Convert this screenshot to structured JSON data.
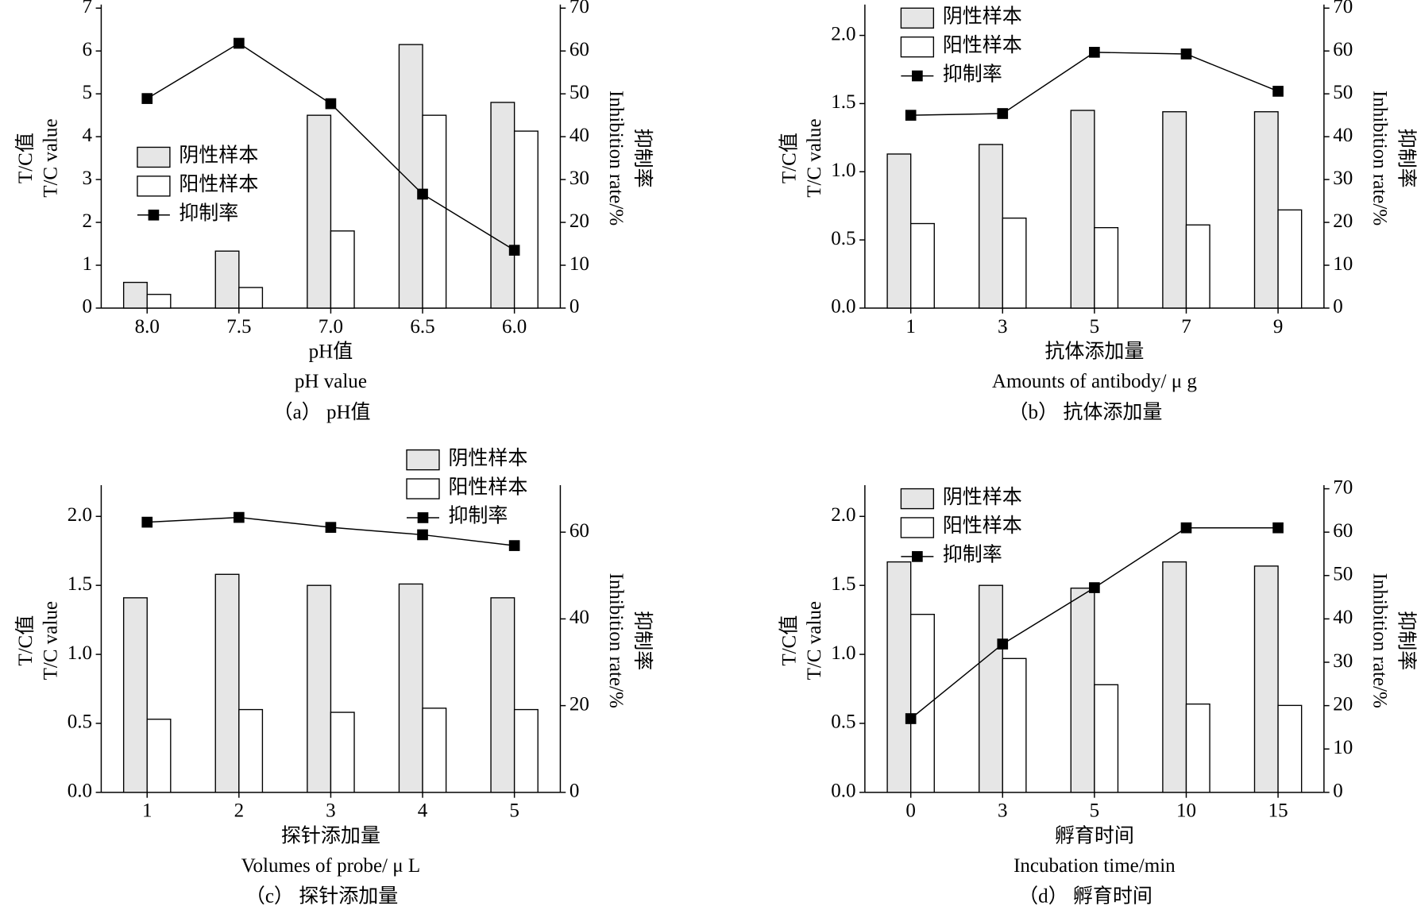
{
  "chart_data": [
    {
      "type": "bar",
      "caption": "（a） pH值",
      "xlabel": "pH值",
      "xlabel_en": "pH value",
      "ylabel": "T/C值",
      "ylabel_en": "T/C value",
      "y2label": "Inhibition rate/%",
      "y2label_cn": "抑制率",
      "categories": [
        "8.0",
        "7.5",
        "7.0",
        "6.5",
        "6.0"
      ],
      "series": [
        {
          "name": "阴性样本",
          "type": "bar",
          "color": "#e6e6e6",
          "values": [
            0.6,
            1.33,
            4.5,
            6.15,
            4.8
          ]
        },
        {
          "name": "阳性样本",
          "type": "bar",
          "color": "#ffffff",
          "values": [
            0.32,
            0.48,
            1.8,
            4.5,
            4.13
          ]
        },
        {
          "name": "抑制率",
          "type": "line",
          "axis": "y2",
          "color": "#000000",
          "values": [
            48.9,
            61.8,
            47.7,
            26.6,
            13.5
          ]
        }
      ],
      "ylim": [
        0,
        7
      ],
      "yticks": [
        0,
        1,
        2,
        3,
        4,
        5,
        6,
        7
      ],
      "y2lim": [
        0,
        70
      ],
      "y2ticks": [
        0,
        10,
        20,
        30,
        40,
        50,
        60,
        70
      ],
      "legend": "center left"
    },
    {
      "type": "bar",
      "caption": "（b） 抗体添加量",
      "xlabel": "抗体添加量",
      "xlabel_en": "Amounts of antibody/ μ g",
      "ylabel": "T/C值",
      "ylabel_en": "T/C value",
      "y2label": "Inhibition rate/%",
      "y2label_cn": "抑制率",
      "categories": [
        "1",
        "3",
        "5",
        "7",
        "9"
      ],
      "series": [
        {
          "name": "阴性样本",
          "type": "bar",
          "color": "#e6e6e6",
          "values": [
            1.13,
            1.2,
            1.45,
            1.44,
            1.44
          ]
        },
        {
          "name": "阳性样本",
          "type": "bar",
          "color": "#ffffff",
          "values": [
            0.62,
            0.66,
            0.59,
            0.61,
            0.72
          ]
        },
        {
          "name": "抑制率",
          "type": "line",
          "axis": "y2",
          "color": "#000000",
          "values": [
            45,
            45.4,
            59.7,
            59.3,
            50.6
          ]
        }
      ],
      "ylim": [
        0,
        2.2
      ],
      "yticks": [
        {
          "value": 0,
          "label": "0.0"
        },
        0.5,
        {
          "value": 1,
          "label": "1.0"
        },
        1.5,
        {
          "value": 2,
          "label": "2.0"
        }
      ],
      "y2lim": [
        0,
        70
      ],
      "y2ticks": [
        0,
        10,
        20,
        30,
        40,
        50,
        60,
        70
      ],
      "legend": "upper left"
    },
    {
      "type": "bar",
      "caption": "（c） 探针添加量",
      "xlabel": "探针添加量",
      "xlabel_en": "Volumes of probe/ μ L",
      "ylabel": "T/C值",
      "ylabel_en": "T/C value",
      "y2label": "Inhibition rate/%",
      "y2label_cn": "抑制率",
      "categories": [
        "1",
        "2",
        "3",
        "4",
        "5"
      ],
      "series": [
        {
          "name": "阴性样本",
          "type": "bar",
          "color": "#e6e6e6",
          "values": [
            1.41,
            1.58,
            1.5,
            1.51,
            1.41
          ]
        },
        {
          "name": "阳性样本",
          "type": "bar",
          "color": "#ffffff",
          "values": [
            0.53,
            0.6,
            0.58,
            0.61,
            0.6
          ]
        },
        {
          "name": "抑制率",
          "type": "line",
          "axis": "y2",
          "color": "#000000",
          "values": [
            62.3,
            63.4,
            61.1,
            59.4,
            56.9
          ]
        }
      ],
      "ylim": [
        0,
        2.2
      ],
      "yticks": [
        {
          "value": 0,
          "label": "0.0"
        },
        0.5,
        {
          "value": 1,
          "label": "1.0"
        },
        1.5,
        {
          "value": 2,
          "label": "2.0"
        }
      ],
      "y2lim": [
        0,
        70
      ],
      "y2ticks": [
        0,
        20,
        40,
        60
      ],
      "legend": "upper right"
    },
    {
      "type": "bar",
      "caption": "（d） 孵育时间",
      "xlabel": "孵育时间",
      "xlabel_en": "Incubation time/min",
      "ylabel": "T/C值",
      "ylabel_en": "T/C value",
      "y2label": "Inhibition rate/%",
      "y2label_cn": "抑制率",
      "categories": [
        "0",
        "3",
        "5",
        "10",
        "15"
      ],
      "series": [
        {
          "name": "阴性样本",
          "type": "bar",
          "color": "#e6e6e6",
          "values": [
            1.67,
            1.5,
            1.48,
            1.67,
            1.64
          ]
        },
        {
          "name": "阳性样本",
          "type": "bar",
          "color": "#ffffff",
          "values": [
            1.29,
            0.97,
            0.78,
            0.64,
            0.63
          ]
        },
        {
          "name": "抑制率",
          "type": "line",
          "axis": "y2",
          "color": "#000000",
          "values": [
            17,
            34.2,
            47.2,
            61,
            61
          ]
        }
      ],
      "ylim": [
        0,
        2.2
      ],
      "yticks": [
        {
          "value": 0,
          "label": "0.0"
        },
        0.5,
        {
          "value": 1,
          "label": "1.0"
        },
        1.5,
        {
          "value": 2,
          "label": "2.0"
        }
      ],
      "y2lim": [
        0,
        70
      ],
      "y2ticks": [
        0,
        10,
        20,
        30,
        40,
        50,
        60,
        70
      ],
      "legend": "upper left"
    }
  ]
}
